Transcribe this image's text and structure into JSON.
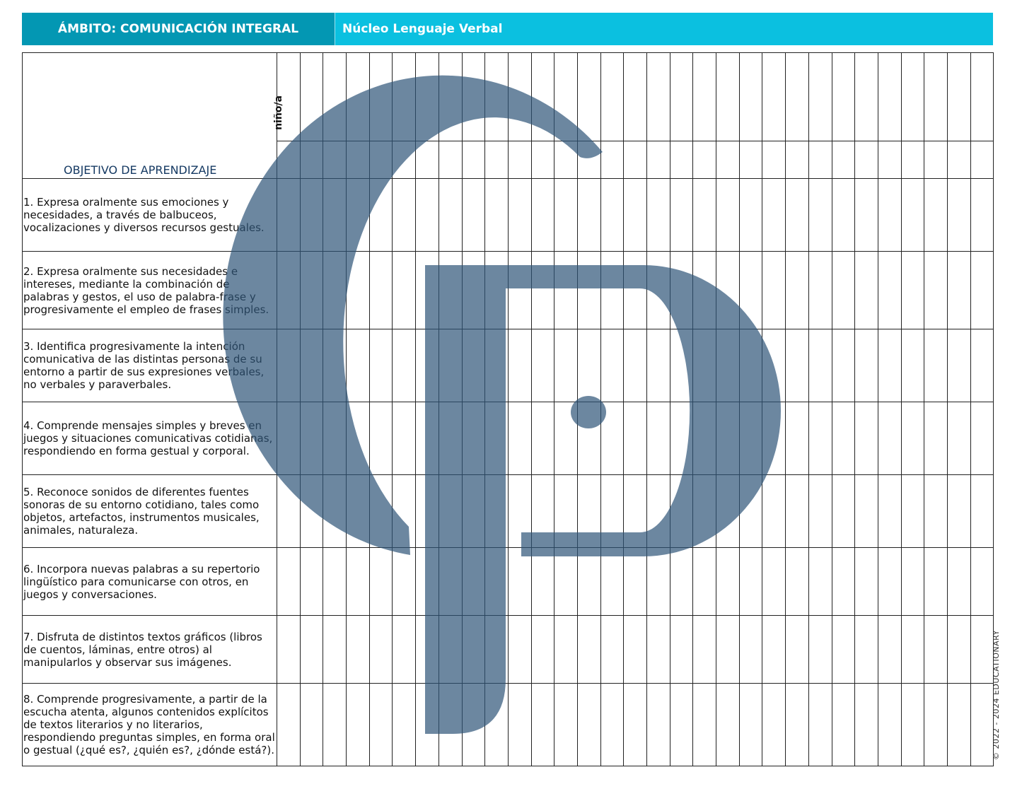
{
  "header": {
    "ambito": "ÁMBITO: COMUNICACIÓN INTEGRAL",
    "nucleo": "Núcleo Lenguaje Verbal"
  },
  "table": {
    "objective_header": "OBJETIVO DE APRENDIZAJE",
    "child_header": "niño/a",
    "objectives": [
      "1. Expresa oralmente sus emociones y necesidades, a través de balbuceos, vocalizaciones y diversos recursos gestuales.",
      "2. Expresa oralmente sus necesidades e intereses, mediante la combinación de palabras y gestos, el uso de palabra-frase y progresivamente el empleo de frases simples.",
      "3. Identifica progresivamente la intención comunicativa de las distintas personas de su entorno a partir de sus expresiones verbales, no verbales y paraverbales.",
      "4. Comprende mensajes simples y breves en juegos y situaciones comunicativas cotidianas, respondiendo en forma gestual y corporal.",
      "5. Reconoce sonidos de diferentes fuentes sonoras de su entorno cotidiano, tales como objetos, artefactos, instrumentos musicales, animales, naturaleza.",
      "6. Incorpora nuevas palabras a su repertorio lingüístico para comunicarse con otros, en juegos y conversaciones.",
      "7. Disfruta de distintos textos gráficos (libros de cuentos, láminas, entre otros) al manipularlos y observar sus imágenes.",
      "8. Comprende progresivamente, a partir de la escucha atenta, algunos contenidos explícitos de textos literarios y no literarios, respondiendo preguntas simples, en forma oral o gestual (¿qué es?, ¿quién es?, ¿dónde está?)."
    ]
  },
  "footer": {
    "copyright": "© 2022 - 2024 EDUCATIONARY"
  },
  "watermark": {
    "icon": "cp-logo",
    "color": "#2d5478"
  },
  "colors": {
    "ambito_bg": "#0397b3",
    "nucleo_bg": "#0bc0e0"
  }
}
